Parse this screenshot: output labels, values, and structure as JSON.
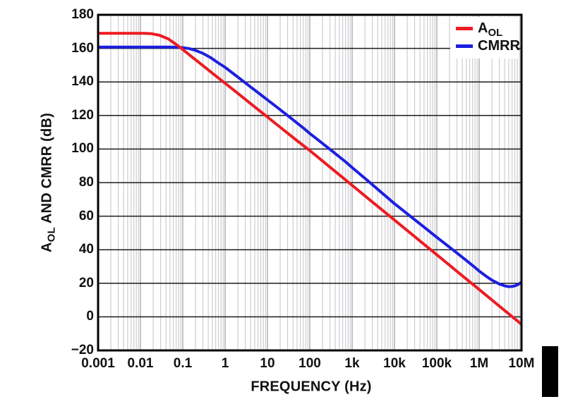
{
  "chart_data": {
    "type": "line",
    "title": "",
    "xlabel": "FREQUENCY (Hz)",
    "ylabel_parts": {
      "main": "A",
      "sub": "OL",
      "rest": " AND CMRR (dB)"
    },
    "x_scale": "log",
    "xlim": [
      0.001,
      10000000
    ],
    "ylim": [
      -20,
      180
    ],
    "grid": "on",
    "x_ticks": [
      0.001,
      0.01,
      0.1,
      1,
      10,
      100,
      1000,
      10000,
      100000,
      1000000,
      10000000
    ],
    "x_tick_labels": [
      "0.001",
      "0.01",
      "0.1",
      "1",
      "10",
      "100",
      "1k",
      "10k",
      "100k",
      "1M",
      "10M"
    ],
    "y_ticks": [
      180,
      160,
      140,
      120,
      100,
      80,
      60,
      40,
      20,
      0,
      -20
    ],
    "y_tick_labels": [
      "180",
      "160",
      "140",
      "120",
      "100",
      "80",
      "60",
      "40",
      "20",
      "0",
      "−20"
    ],
    "colors": {
      "minor_grid": "#c4c4ca",
      "major_v_grid": "#9b9ba2",
      "major_h_grid": "#1c1c1c",
      "frame": "#000000",
      "text": "#111111"
    },
    "legend": {
      "position": "top-right",
      "items": [
        {
          "label_main": "A",
          "label_sub": "OL",
          "color": "#ed1b22"
        },
        {
          "label_main": "CMRR",
          "label_sub": "",
          "color": "#1c1fe0"
        }
      ]
    },
    "series": [
      {
        "name": "AOL",
        "color": "#ed1b22",
        "points": [
          [
            0.001,
            169
          ],
          [
            0.012,
            169
          ],
          [
            0.018,
            168.8
          ],
          [
            0.028,
            167.8
          ],
          [
            0.045,
            165.7
          ],
          [
            0.065,
            162.9
          ],
          [
            0.09,
            160.2
          ],
          [
            0.13,
            157
          ],
          [
            0.2,
            153.2
          ],
          [
            0.3,
            149.7
          ],
          [
            0.5,
            145.2
          ],
          [
            1,
            139.2
          ],
          [
            2,
            133.2
          ],
          [
            4,
            127.1
          ],
          [
            7,
            122.2
          ],
          [
            10,
            119.1
          ],
          [
            20,
            113
          ],
          [
            50,
            105
          ],
          [
            100,
            99.1
          ],
          [
            300,
            89.2
          ],
          [
            1000,
            78.4
          ],
          [
            3000,
            68.5
          ],
          [
            10000,
            57.7
          ],
          [
            30000,
            47.8
          ],
          [
            100000,
            37
          ],
          [
            300000,
            27.1
          ],
          [
            1000000,
            16.3
          ],
          [
            3000000,
            6.4
          ],
          [
            10000000,
            -4.4
          ]
        ]
      },
      {
        "name": "CMRR",
        "color": "#1c1fe0",
        "points": [
          [
            0.001,
            160.8
          ],
          [
            0.04,
            160.8
          ],
          [
            0.07,
            160.7
          ],
          [
            0.1,
            160.4
          ],
          [
            0.14,
            159.9
          ],
          [
            0.2,
            158.8
          ],
          [
            0.3,
            157
          ],
          [
            0.45,
            154.6
          ],
          [
            0.7,
            151.2
          ],
          [
            1,
            148.7
          ],
          [
            1.5,
            145.3
          ],
          [
            2.5,
            141
          ],
          [
            4,
            137
          ],
          [
            6,
            133.6
          ],
          [
            10,
            129.3
          ],
          [
            15,
            125.9
          ],
          [
            25,
            121.5
          ],
          [
            40,
            117.5
          ],
          [
            70,
            112.6
          ],
          [
            100,
            109.3
          ],
          [
            150,
            105.8
          ],
          [
            250,
            101.4
          ],
          [
            400,
            97.3
          ],
          [
            700,
            92.4
          ],
          [
            1000,
            89
          ],
          [
            2500,
            80.5
          ],
          [
            5000,
            74
          ],
          [
            10000,
            67.5
          ],
          [
            25000,
            59.5
          ],
          [
            50000,
            53.5
          ],
          [
            100000,
            47.4
          ],
          [
            250000,
            39.6
          ],
          [
            500000,
            33.6
          ],
          [
            800000,
            29.4
          ],
          [
            1000000,
            27.3
          ],
          [
            1500000,
            24
          ],
          [
            2000000,
            21.9
          ],
          [
            3000000,
            19.6
          ],
          [
            4000000,
            18.5
          ],
          [
            5000000,
            18
          ],
          [
            6000000,
            18.1
          ],
          [
            7000000,
            18.5
          ],
          [
            8500000,
            19.4
          ],
          [
            10000000,
            20.7
          ]
        ]
      }
    ]
  }
}
